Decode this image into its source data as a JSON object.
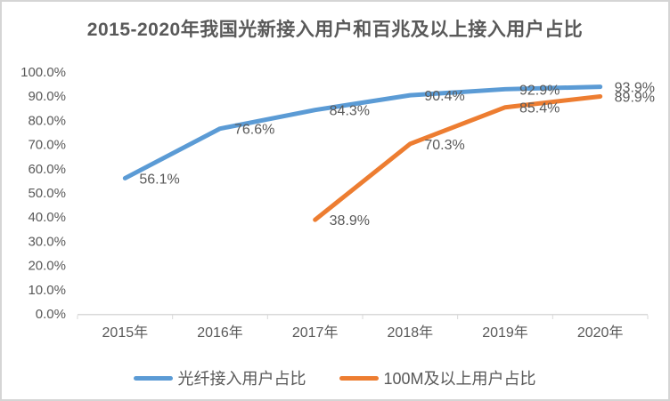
{
  "frame": {
    "background": "#ffffff",
    "border_color": "#d5d5d5"
  },
  "chart_data": {
    "type": "line",
    "title": "2015-2020年我国光新接入用户和百兆及以上接入用户占比",
    "categories": [
      "2015年",
      "2016年",
      "2017年",
      "2018年",
      "2019年",
      "2020年"
    ],
    "series": [
      {
        "name": "光纤接入用户占比",
        "color": "#5b9bd5",
        "values": [
          56.1,
          76.6,
          84.3,
          90.4,
          92.9,
          93.9
        ],
        "labels": [
          "56.1%",
          "76.6%",
          "84.3%",
          "90.4%",
          "92.9%",
          "93.9%"
        ]
      },
      {
        "name": "100M及以上用户占比",
        "color": "#ed7d31",
        "values": [
          null,
          null,
          38.9,
          70.3,
          85.4,
          89.9
        ],
        "labels": [
          null,
          null,
          "38.9%",
          "70.3%",
          "85.4%",
          "89.9%"
        ]
      }
    ],
    "y_axis": {
      "min": 0,
      "max": 100,
      "ticks": [
        "0.0%",
        "10.0%",
        "20.0%",
        "30.0%",
        "40.0%",
        "50.0%",
        "60.0%",
        "70.0%",
        "80.0%",
        "90.0%",
        "100.0%"
      ]
    },
    "grid": false,
    "legend_position": "bottom",
    "axis_color": "#d9d9d9",
    "text_color": "#595959",
    "line_width": 5
  },
  "legend": {
    "items": [
      {
        "label": "光纤接入用户占比",
        "color": "#5b9bd5"
      },
      {
        "label": "100M及以上用户占比",
        "color": "#ed7d31"
      }
    ]
  }
}
